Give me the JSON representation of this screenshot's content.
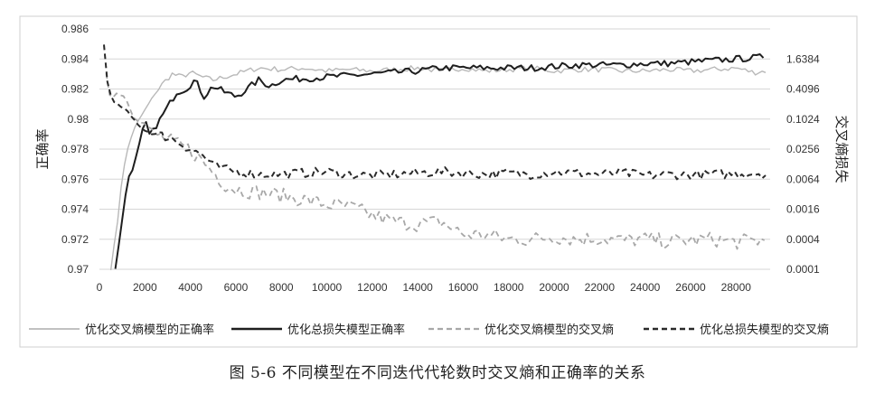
{
  "caption": "图 5-6   不同模型在不同迭代代轮数时交叉熵和正确率的关系",
  "colors": {
    "series1": "#b8b8b8",
    "series2": "#1e1e1e",
    "series3": "#a8a8a8",
    "series4": "#2a2a2a",
    "grid": "#d6d6d6",
    "frame": "#cfcfcf"
  },
  "chart_data": {
    "type": "line",
    "ylabel": "正确率",
    "y2label": "交叉熵损失",
    "ylim": [
      0.97,
      0.986
    ],
    "y2lim": [
      0.0001,
      6.5536
    ],
    "y2scale": "log4",
    "xlim": [
      0,
      29500
    ],
    "xticks": [
      "0",
      "2000",
      "4000",
      "6000",
      "8000",
      "10000",
      "12000",
      "14000",
      "16000",
      "18000",
      "20000",
      "22000",
      "24000",
      "26000",
      "28000"
    ],
    "yticks": [
      "0.97",
      "0.972",
      "0.974",
      "0.976",
      "0.978",
      "0.98",
      "0.982",
      "0.984",
      "0.986"
    ],
    "y2ticks": [
      "0.0001",
      "0.0004",
      "0.0016",
      "0.0064",
      "0.0256",
      "0.1024",
      "0.4096",
      "1.6384"
    ],
    "grid": true,
    "legend_position": "bottom",
    "series": [
      {
        "name": "优化交叉熵模型的正确率",
        "axis": "left",
        "style": "solid-light",
        "x": [
          500,
          800,
          1000,
          1300,
          1600,
          2000,
          2400,
          2800,
          3200,
          3600,
          4000,
          4500,
          5000,
          5500,
          6000,
          6500,
          7000,
          8000,
          9000,
          10000,
          11000,
          12000,
          13000,
          14000,
          15000,
          16000,
          17000,
          18000,
          19000,
          20000,
          21000,
          22000,
          23000,
          24000,
          25000,
          26000,
          27000,
          28000,
          28800,
          29300
        ],
        "values": [
          0.97,
          0.9732,
          0.9762,
          0.9784,
          0.9796,
          0.9806,
          0.9816,
          0.9824,
          0.983,
          0.9828,
          0.9831,
          0.9828,
          0.9826,
          0.9828,
          0.983,
          0.9832,
          0.9834,
          0.9833,
          0.9834,
          0.9832,
          0.9833,
          0.9832,
          0.9833,
          0.9834,
          0.9832,
          0.9834,
          0.9832,
          0.9833,
          0.9834,
          0.9832,
          0.9833,
          0.9833,
          0.9832,
          0.9832,
          0.9833,
          0.9832,
          0.9833,
          0.9834,
          0.9831,
          0.9832
        ]
      },
      {
        "name": "优化总损失模型正确率",
        "axis": "left",
        "style": "solid-dark",
        "x": [
          700,
          900,
          1100,
          1300,
          1500,
          1800,
          2000,
          2200,
          2600,
          3000,
          3400,
          3800,
          4200,
          4600,
          5000,
          5500,
          6000,
          6500,
          7000,
          7500,
          8000,
          9000,
          10000,
          11000,
          12000,
          13000,
          14000,
          15000,
          16000,
          17000,
          18000,
          19000,
          20000,
          21000,
          22000,
          23000,
          24000,
          25000,
          26000,
          27000,
          28000,
          29000,
          29300
        ],
        "values": [
          0.97,
          0.9722,
          0.9745,
          0.9762,
          0.9768,
          0.9786,
          0.98,
          0.979,
          0.9798,
          0.9808,
          0.9818,
          0.982,
          0.9826,
          0.9815,
          0.9822,
          0.9818,
          0.9815,
          0.982,
          0.9826,
          0.9822,
          0.9826,
          0.9827,
          0.9828,
          0.9829,
          0.983,
          0.9831,
          0.9832,
          0.9834,
          0.9834,
          0.9834,
          0.9834,
          0.9834,
          0.9835,
          0.9836,
          0.9836,
          0.9836,
          0.9837,
          0.9837,
          0.9838,
          0.9839,
          0.984,
          0.9841,
          0.9842
        ]
      },
      {
        "name": "优化交叉熵模型的交叉熵",
        "axis": "right",
        "style": "dashed-light",
        "x": [
          300,
          500,
          800,
          1100,
          1500,
          2000,
          2500,
          3000,
          3500,
          4000,
          4500,
          5000,
          5500,
          6000,
          7000,
          8000,
          9000,
          10000,
          11000,
          12000,
          13000,
          14000,
          15000,
          16000,
          17000,
          18000,
          19000,
          20000,
          21000,
          22000,
          23000,
          24000,
          25000,
          26000,
          27000,
          28000,
          29000,
          29300
        ],
        "values": [
          0.9,
          0.25,
          0.35,
          0.3,
          0.12,
          0.08,
          0.05,
          0.04,
          0.03,
          0.025,
          0.015,
          0.009,
          0.005,
          0.004,
          0.0035,
          0.003,
          0.0025,
          0.002,
          0.0018,
          0.0012,
          0.0009,
          0.0008,
          0.0009,
          0.0005,
          0.0005,
          0.0004,
          0.0004,
          0.00045,
          0.0004,
          0.00042,
          0.00038,
          0.0004,
          0.00036,
          0.00038,
          0.0004,
          0.00035,
          0.00038,
          0.00036
        ]
      },
      {
        "name": "优化总损失模型的交叉熵",
        "axis": "right",
        "style": "dashed-dark",
        "x": [
          200,
          400,
          700,
          1000,
          1300,
          1600,
          2000,
          2500,
          3000,
          3500,
          4000,
          4500,
          5000,
          5500,
          6000,
          7000,
          8000,
          9000,
          10000,
          11000,
          12000,
          13000,
          14000,
          15000,
          16000,
          17000,
          18000,
          19000,
          20000,
          21000,
          22000,
          23000,
          24000,
          25000,
          26000,
          27000,
          28000,
          29000,
          29300
        ],
        "values": [
          3.2,
          0.35,
          0.2,
          0.18,
          0.13,
          0.09,
          0.06,
          0.05,
          0.045,
          0.035,
          0.025,
          0.02,
          0.012,
          0.01,
          0.009,
          0.008,
          0.008,
          0.0085,
          0.009,
          0.008,
          0.0075,
          0.008,
          0.0085,
          0.009,
          0.0085,
          0.008,
          0.0085,
          0.008,
          0.009,
          0.0085,
          0.008,
          0.0085,
          0.0075,
          0.008,
          0.0078,
          0.008,
          0.0082,
          0.0085,
          0.008
        ]
      }
    ]
  }
}
